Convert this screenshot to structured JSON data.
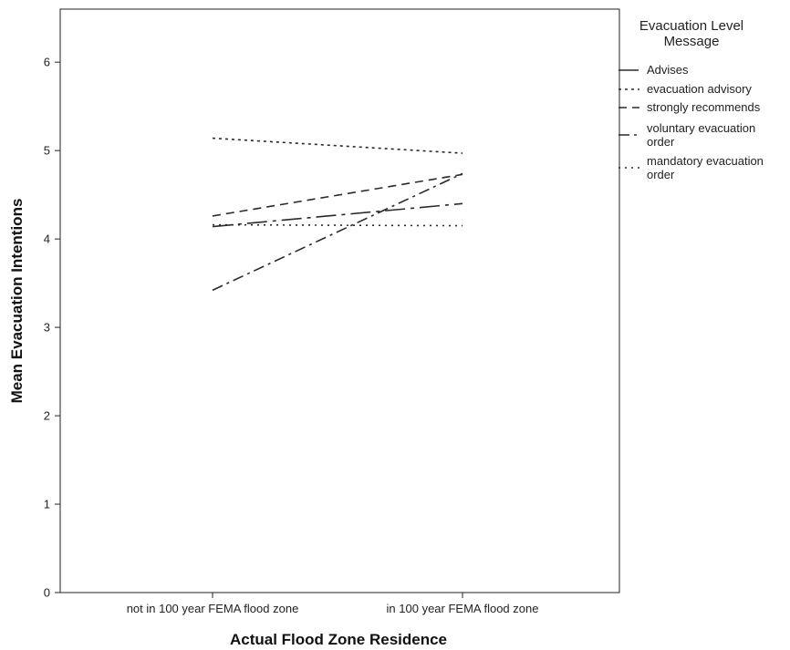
{
  "chart_data": {
    "type": "line",
    "title": "",
    "xlabel": "Actual Flood Zone Residence",
    "ylabel": "Mean Evacuation Intentions",
    "categories": [
      "not in 100 year FEMA flood zone",
      "in 100 year FEMA flood zone"
    ],
    "ylim": [
      0,
      6.6
    ],
    "yticks": [
      0,
      1,
      2,
      3,
      4,
      5,
      6
    ],
    "grid": false,
    "legend": {
      "title_lines": [
        "Evacuation Level",
        "Message"
      ],
      "placement": "right"
    },
    "series": [
      {
        "name": "Advises",
        "name_lines": [
          "Advises"
        ],
        "dash": "longdashdot",
        "values": [
          4.14,
          4.4
        ]
      },
      {
        "name": "evacuation advisory",
        "name_lines": [
          "evacuation advisory"
        ],
        "dash": "dotted",
        "values": [
          5.14,
          4.97
        ]
      },
      {
        "name": "strongly recommends",
        "name_lines": [
          "strongly recommends"
        ],
        "dash": "dashed",
        "values": [
          4.26,
          4.73
        ]
      },
      {
        "name": "voluntary evacuation order",
        "name_lines": [
          "voluntary evacuation",
          "order"
        ],
        "dash": "dashdot",
        "values": [
          3.42,
          4.74
        ]
      },
      {
        "name": "mandatory evacuation order",
        "name_lines": [
          "mandatory evacuation",
          "order"
        ],
        "dash": "fine-dotted",
        "values": [
          4.16,
          4.15
        ]
      }
    ]
  }
}
